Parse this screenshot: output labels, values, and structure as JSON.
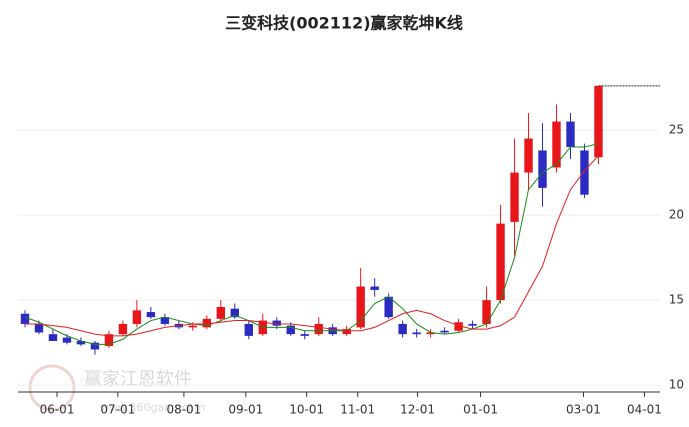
{
  "chart_data": {
    "type": "candlestick",
    "title": "三变科技(002112)赢家乾坤K线",
    "watermark": [
      "赢家江恩软件",
      "www.360gann.com"
    ],
    "up_color": "#e8161b",
    "down_color": "#2b2bc4",
    "open": [
      14.2,
      13.6,
      13.0,
      12.8,
      12.6,
      12.5,
      12.3,
      13.0,
      13.6,
      14.3,
      14.0,
      13.6,
      13.4,
      13.4,
      13.9,
      14.5,
      13.6,
      13.0,
      13.8,
      13.5,
      13.0,
      13.0,
      13.4,
      13.0,
      13.4,
      15.8,
      15.2,
      13.6,
      13.1,
      13.0,
      13.2,
      13.2,
      13.6,
      13.6,
      15.0,
      19.6,
      22.5,
      23.8,
      22.8,
      25.5,
      23.8,
      23.4
    ],
    "high": [
      14.4,
      13.8,
      13.3,
      13.0,
      12.8,
      12.6,
      13.2,
      13.8,
      15.0,
      14.6,
      14.2,
      13.8,
      13.7,
      14.1,
      15.0,
      14.8,
      13.8,
      14.2,
      14.0,
      13.7,
      13.2,
      14.0,
      13.6,
      13.5,
      16.9,
      16.3,
      15.4,
      13.8,
      13.3,
      13.3,
      13.4,
      13.9,
      13.8,
      15.8,
      20.6,
      24.5,
      26.0,
      25.4,
      26.5,
      26.0,
      24.2,
      27.6
    ],
    "low": [
      13.4,
      13.0,
      12.6,
      12.4,
      12.3,
      11.8,
      12.2,
      12.9,
      13.4,
      13.9,
      13.5,
      13.3,
      13.2,
      13.3,
      13.7,
      13.9,
      12.7,
      12.9,
      13.3,
      12.9,
      12.7,
      12.9,
      12.9,
      12.9,
      13.3,
      15.2,
      13.9,
      12.8,
      12.8,
      12.8,
      13.0,
      13.1,
      13.3,
      13.4,
      14.8,
      17.6,
      21.5,
      20.5,
      22.5,
      23.3,
      21.0,
      23.0
    ],
    "close": [
      13.6,
      13.1,
      12.6,
      12.5,
      12.4,
      12.1,
      13.0,
      13.6,
      14.4,
      14.0,
      13.6,
      13.4,
      13.5,
      13.9,
      14.6,
      14.0,
      12.9,
      13.8,
      13.5,
      13.0,
      12.9,
      13.6,
      13.0,
      13.3,
      15.8,
      15.6,
      14.0,
      13.0,
      13.0,
      13.1,
      13.1,
      13.7,
      13.5,
      15.0,
      19.5,
      22.5,
      24.5,
      21.6,
      25.5,
      24.0,
      21.2,
      27.6
    ],
    "lines": [
      {
        "color": "#1a8a1a",
        "values": [
          14.0,
          13.7,
          13.3,
          12.9,
          12.6,
          12.4,
          12.4,
          12.7,
          13.3,
          13.8,
          14.0,
          13.8,
          13.6,
          13.5,
          13.8,
          14.1,
          13.8,
          13.4,
          13.4,
          13.4,
          13.2,
          13.2,
          13.2,
          13.2,
          13.8,
          14.8,
          15.2,
          14.5,
          13.6,
          13.1,
          13.0,
          13.1,
          13.3,
          13.6,
          15.0,
          17.5,
          21.5,
          22.5,
          23.0,
          24.0,
          24.0,
          24.2
        ]
      },
      {
        "color": "#e02020",
        "values": [
          13.6,
          13.6,
          13.5,
          13.4,
          13.2,
          13.0,
          12.9,
          12.9,
          13.0,
          13.2,
          13.4,
          13.5,
          13.6,
          13.6,
          13.7,
          13.8,
          13.8,
          13.7,
          13.6,
          13.6,
          13.5,
          13.4,
          13.3,
          13.2,
          13.2,
          13.4,
          13.8,
          14.2,
          14.4,
          14.2,
          13.8,
          13.5,
          13.3,
          13.3,
          13.5,
          14.0,
          15.5,
          17.0,
          19.5,
          21.5,
          22.6,
          23.5
        ]
      }
    ],
    "xlim": [
      -0.5,
      45.4
    ],
    "xticks": [
      {
        "value": 2.29,
        "label": "06-01"
      },
      {
        "value": 6.64,
        "label": "07-01"
      },
      {
        "value": 11.36,
        "label": "08-01"
      },
      {
        "value": 15.79,
        "label": "09-01"
      },
      {
        "value": 20.14,
        "label": "10-01"
      },
      {
        "value": 23.79,
        "label": "11-01"
      },
      {
        "value": 28.07,
        "label": "12-01"
      },
      {
        "value": 32.57,
        "label": "01-01"
      },
      {
        "value": 39.93,
        "label": "03-01"
      },
      {
        "value": 44.29,
        "label": "04-01"
      }
    ],
    "ylim": [
      9.6,
      30
    ],
    "yticks": [
      10,
      15,
      20,
      25
    ],
    "grid": true
  }
}
